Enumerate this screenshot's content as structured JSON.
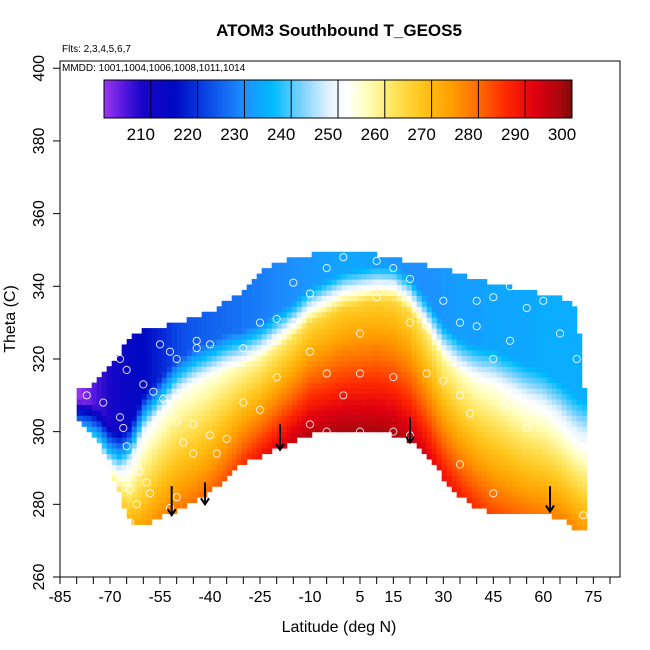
{
  "chart_data": {
    "type": "heatmap",
    "title": "ATOM3 Southbound T_GEOS5",
    "flights_note": "Flts: 2,3,4,5,6,7",
    "dates_note": "MMDD: 1001,1004,1006,1008,1011,1014",
    "xlabel": "Latitude (deg N)",
    "ylabel": "Theta (C)",
    "xlim": [
      -85,
      83
    ],
    "ylim": [
      260,
      402
    ],
    "x_tick_labels": [
      "-85",
      "-70",
      "-55",
      "-40",
      "-25",
      "-10",
      "5",
      "15",
      "30",
      "45",
      "60",
      "75"
    ],
    "x_minor_ticks": [
      -85,
      -80,
      -75,
      -70,
      -65,
      -60,
      -55,
      -50,
      -45,
      -40,
      -35,
      -30,
      -25,
      -20,
      -15,
      -10,
      -5,
      0,
      5,
      10,
      15,
      20,
      25,
      30,
      35,
      40,
      45,
      50,
      55,
      60,
      65,
      70,
      75,
      80
    ],
    "y_tick_labels": [
      "260",
      "280",
      "300",
      "320",
      "340",
      "360",
      "380",
      "400"
    ],
    "colorbar": {
      "min": 200,
      "max": 300,
      "tick_labels": [
        "210",
        "220",
        "230",
        "240",
        "250",
        "260",
        "270",
        "280",
        "290",
        "300"
      ],
      "color_stops": [
        {
          "v": 200,
          "c": "#9a36f0"
        },
        {
          "v": 204,
          "c": "#5a1ae0"
        },
        {
          "v": 208,
          "c": "#1a06c8"
        },
        {
          "v": 215,
          "c": "#0008c2"
        },
        {
          "v": 222,
          "c": "#0a47e6"
        },
        {
          "v": 230,
          "c": "#1e90ff"
        },
        {
          "v": 236,
          "c": "#00bbff"
        },
        {
          "v": 243,
          "c": "#8ad6ff"
        },
        {
          "v": 248,
          "c": "#e2f2ff"
        },
        {
          "v": 252,
          "c": "#ffffff"
        },
        {
          "v": 256,
          "c": "#ffffbf"
        },
        {
          "v": 262,
          "c": "#ffe45c"
        },
        {
          "v": 268,
          "c": "#ffc41a"
        },
        {
          "v": 274,
          "c": "#ffa000"
        },
        {
          "v": 280,
          "c": "#ff6a00"
        },
        {
          "v": 286,
          "c": "#ff2800"
        },
        {
          "v": 292,
          "c": "#e00010"
        },
        {
          "v": 297,
          "c": "#b0060e"
        },
        {
          "v": 300,
          "c": "#7a0c0c"
        }
      ]
    },
    "coverage": {
      "lat": [
        -80,
        -76,
        -73,
        -70,
        -67,
        -64,
        -60,
        -55,
        -50,
        -45,
        -40,
        -35,
        -30,
        -25,
        -20,
        -15,
        -10,
        -5,
        0,
        5,
        10,
        15,
        20,
        25,
        30,
        35,
        40,
        45,
        50,
        55,
        60,
        65,
        70,
        72
      ],
      "theta_min": [
        304,
        301,
        297,
        291,
        283,
        276,
        275,
        277,
        279,
        281,
        284,
        288,
        292,
        294,
        296,
        298,
        300,
        300,
        300,
        300,
        300,
        300,
        298,
        294,
        288,
        283,
        280,
        278,
        278,
        278,
        278,
        277,
        274,
        273
      ],
      "theta_max": [
        311,
        312,
        314,
        317,
        321,
        325,
        327,
        328,
        329,
        331,
        332,
        335,
        338,
        343,
        346,
        347,
        348,
        349,
        349,
        349,
        348,
        347,
        346,
        345,
        344,
        343,
        341,
        340,
        339,
        338,
        337,
        336,
        334,
        312
      ]
    },
    "temperature_model": {
      "lat": [
        -80,
        -76,
        -73,
        -70,
        -67,
        -64,
        -60,
        -55,
        -50,
        -45,
        -40,
        -35,
        -30,
        -25,
        -20,
        -15,
        -10,
        -5,
        0,
        5,
        10,
        15,
        20,
        25,
        30,
        35,
        40,
        45,
        50,
        55,
        60,
        65,
        70,
        72
      ],
      "tropopause_theta": [
        299,
        298,
        296,
        292,
        290,
        292,
        300,
        305,
        310,
        313,
        315,
        317,
        318,
        320,
        323,
        326,
        330,
        332,
        334,
        335,
        336,
        336,
        333,
        327,
        320,
        316,
        314,
        313,
        311,
        309,
        307,
        304,
        300,
        299
      ],
      "surface_temp": [
        250,
        250,
        251,
        253,
        264,
        270,
        273,
        276,
        278,
        279,
        280,
        282,
        285,
        288,
        291,
        294,
        296,
        297,
        298,
        298,
        298,
        297,
        295,
        292,
        289,
        287,
        285,
        283,
        281,
        279,
        278,
        277,
        276,
        275
      ],
      "trop_temp": [
        247,
        246,
        245,
        246,
        247,
        248,
        250,
        252,
        253,
        253,
        254,
        255,
        257,
        258,
        260,
        262,
        264,
        265,
        266,
        266,
        266,
        265,
        264,
        261,
        258,
        256,
        254,
        253,
        252,
        251,
        251,
        250,
        249,
        249
      ],
      "strat_temp": [
        200,
        203,
        206,
        208,
        211,
        213,
        215,
        218,
        222,
        224,
        225,
        226,
        227,
        228,
        229,
        230,
        231,
        232,
        233,
        233,
        232,
        231,
        230,
        230,
        231,
        232,
        232,
        233,
        233,
        233,
        234,
        234,
        234,
        234
      ]
    },
    "sample_points": [
      [
        -77,
        310
      ],
      [
        -72,
        308
      ],
      [
        -67,
        304
      ],
      [
        -66,
        301
      ],
      [
        -65,
        296
      ],
      [
        -63,
        293
      ],
      [
        -61,
        289
      ],
      [
        -59,
        286
      ],
      [
        -58,
        283
      ],
      [
        -62,
        280
      ],
      [
        -64,
        284
      ],
      [
        -66,
        276
      ],
      [
        -64,
        275
      ],
      [
        -66,
        326
      ],
      [
        -67,
        320
      ],
      [
        -65,
        317
      ],
      [
        -60,
        313
      ],
      [
        -57,
        311
      ],
      [
        -55,
        324
      ],
      [
        -54,
        309
      ],
      [
        -52,
        306
      ],
      [
        -50,
        303
      ],
      [
        -48,
        297
      ],
      [
        -45,
        302
      ],
      [
        -45,
        294
      ],
      [
        -40,
        299
      ],
      [
        -38,
        294
      ],
      [
        -35,
        298
      ],
      [
        -40,
        324
      ],
      [
        -44,
        323
      ],
      [
        -44,
        325
      ],
      [
        -52,
        322
      ],
      [
        -50,
        320
      ],
      [
        -50,
        282
      ],
      [
        -52,
        279
      ],
      [
        -30,
        323
      ],
      [
        -25,
        330
      ],
      [
        -20,
        331
      ],
      [
        -15,
        330
      ],
      [
        -20,
        315
      ],
      [
        -20,
        325
      ],
      [
        -25,
        306
      ],
      [
        -30,
        308
      ],
      [
        -10,
        322
      ],
      [
        -5,
        316
      ],
      [
        -10,
        302
      ],
      [
        -5,
        300
      ],
      [
        0,
        310
      ],
      [
        5,
        300
      ],
      [
        5,
        316
      ],
      [
        5,
        327
      ],
      [
        10,
        337
      ],
      [
        15,
        340
      ],
      [
        20,
        342
      ],
      [
        15,
        345
      ],
      [
        10,
        347
      ],
      [
        0,
        348
      ],
      [
        -5,
        345
      ],
      [
        -15,
        341
      ],
      [
        -10,
        338
      ],
      [
        15,
        315
      ],
      [
        15,
        300
      ],
      [
        20,
        299
      ],
      [
        25,
        316
      ],
      [
        25,
        329
      ],
      [
        20,
        330
      ],
      [
        30,
        336
      ],
      [
        35,
        330
      ],
      [
        40,
        329
      ],
      [
        40,
        336
      ],
      [
        45,
        337
      ],
      [
        50,
        340
      ],
      [
        55,
        334
      ],
      [
        60,
        336
      ],
      [
        50,
        325
      ],
      [
        45,
        320
      ],
      [
        40,
        315
      ],
      [
        35,
        310
      ],
      [
        30,
        314
      ],
      [
        38,
        305
      ],
      [
        35,
        291
      ],
      [
        48,
        307
      ],
      [
        55,
        301
      ],
      [
        45,
        283
      ],
      [
        65,
        327
      ],
      [
        70,
        320
      ],
      [
        72,
        296
      ],
      [
        72,
        277
      ]
    ],
    "arrows": [
      {
        "lat": -51.5,
        "theta_top": 285,
        "theta_bottom": 277
      },
      {
        "lat": -41.5,
        "theta_top": 286,
        "theta_bottom": 280
      },
      {
        "lat": -19,
        "theta_top": 302,
        "theta_bottom": 295
      },
      {
        "lat": 20,
        "theta_top": 304,
        "theta_bottom": 297
      },
      {
        "lat": 62,
        "theta_top": 285,
        "theta_bottom": 278
      }
    ]
  }
}
